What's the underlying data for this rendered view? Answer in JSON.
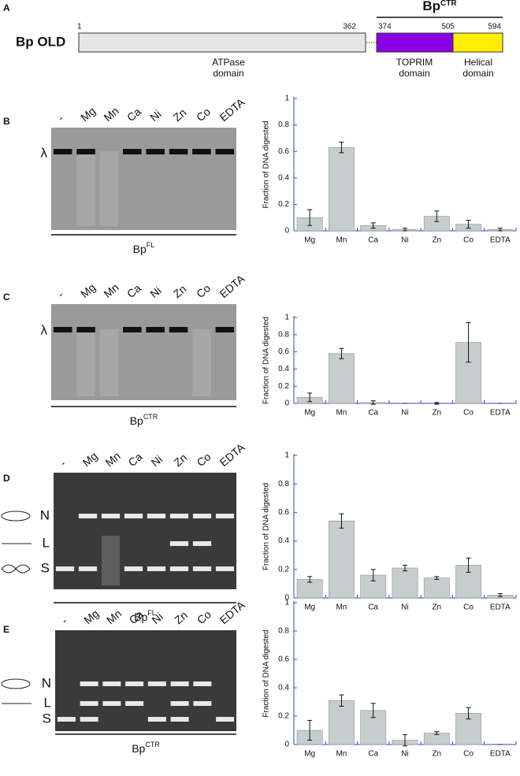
{
  "panel_a": {
    "label": "A",
    "protein": "Bp OLD",
    "residues": [
      1,
      362,
      374,
      505,
      594
    ],
    "ctr_label": {
      "base": "Bp",
      "sup": "CTR"
    },
    "domains": [
      [
        "ATPase",
        "domain"
      ],
      [
        "TOPRIM",
        "domain"
      ],
      [
        "Helical",
        "domain"
      ]
    ]
  },
  "gels": [
    {
      "label": "B",
      "lanes": [
        "-",
        "Mg",
        "Mn",
        "Ca",
        "Ni",
        "Zn",
        "Co",
        "EDTA"
      ],
      "markers": [
        "λ"
      ],
      "construct": {
        "base": "Bp",
        "sup": "FL"
      }
    },
    {
      "label": "C",
      "lanes": [
        "-",
        "Mg",
        "Mn",
        "Ca",
        "Ni",
        "Zn",
        "Co",
        "EDTA"
      ],
      "markers": [
        "λ"
      ],
      "construct": {
        "base": "Bp",
        "sup": "CTR"
      }
    },
    {
      "label": "D",
      "lanes": [
        "-",
        "Mg",
        "Mn",
        "Ca",
        "Ni",
        "Zn",
        "Co",
        "EDTA"
      ],
      "markers": [
        "N",
        "L",
        "S"
      ],
      "construct": {
        "base": "Bp",
        "sup": "FL"
      }
    },
    {
      "label": "E",
      "lanes": [
        "-",
        "Mg",
        "Mn",
        "Ca",
        "Ni",
        "Zn",
        "Co",
        "EDTA"
      ],
      "markers": [
        "N",
        "L",
        "S"
      ],
      "construct": {
        "base": "Bp",
        "sup": "CTR"
      }
    }
  ],
  "chart_data": [
    {
      "type": "bar",
      "ylabel": "Fraction of DNA digested",
      "categories": [
        "Mg",
        "Mn",
        "Ca",
        "Ni",
        "Zn",
        "Co",
        "EDTA"
      ],
      "values": [
        0.1,
        0.63,
        0.04,
        0.01,
        0.11,
        0.05,
        0.01
      ],
      "errors": [
        0.06,
        0.04,
        0.02,
        0.01,
        0.04,
        0.03,
        0.01
      ],
      "color": "#c6cdcd",
      "ylim": [
        0,
        1
      ],
      "yticks": [
        0,
        0.2,
        0.4,
        0.6,
        0.8,
        1
      ]
    },
    {
      "type": "bar",
      "ylabel": "Fraction of DNA digested",
      "categories": [
        "Mg",
        "Mn",
        "Ca",
        "Ni",
        "Zn",
        "Co",
        "EDTA"
      ],
      "values": [
        0.07,
        0.58,
        0.01,
        0,
        0,
        0.71,
        0
      ],
      "errors": [
        0.05,
        0.06,
        0.02,
        0,
        0.01,
        0.23,
        0
      ],
      "color": "#c6cdcd",
      "ylim": [
        0,
        1
      ],
      "yticks": [
        0,
        0.2,
        0.4,
        0.6,
        0.8,
        1
      ]
    },
    {
      "type": "bar",
      "ylabel": "Fraction of DNA digested",
      "categories": [
        "Mg",
        "Mn",
        "Ca",
        "Ni",
        "Zn",
        "Co",
        "EDTA"
      ],
      "values": [
        0.13,
        0.54,
        0.16,
        0.21,
        0.14,
        0.23,
        0.02
      ],
      "errors": [
        0.02,
        0.05,
        0.04,
        0.02,
        0.01,
        0.05,
        0.01
      ],
      "color": "#c6cdcd",
      "ylim": [
        0,
        1
      ],
      "yticks": [
        0,
        0.2,
        0.4,
        0.6,
        0.8,
        1
      ]
    },
    {
      "type": "bar",
      "ylabel": "Fraction of DNA digested",
      "categories": [
        "Mg",
        "Mn",
        "Ca",
        "Ni",
        "Zn",
        "Co",
        "EDTA"
      ],
      "values": [
        0.1,
        0.31,
        0.24,
        0.03,
        0.08,
        0.22,
        0
      ],
      "errors": [
        0.07,
        0.04,
        0.05,
        0.04,
        0.01,
        0.04,
        0
      ],
      "color": "#c6cdcd",
      "ylim": [
        0,
        1
      ],
      "yticks": [
        0,
        0.2,
        0.4,
        0.6,
        0.8,
        1
      ]
    }
  ]
}
